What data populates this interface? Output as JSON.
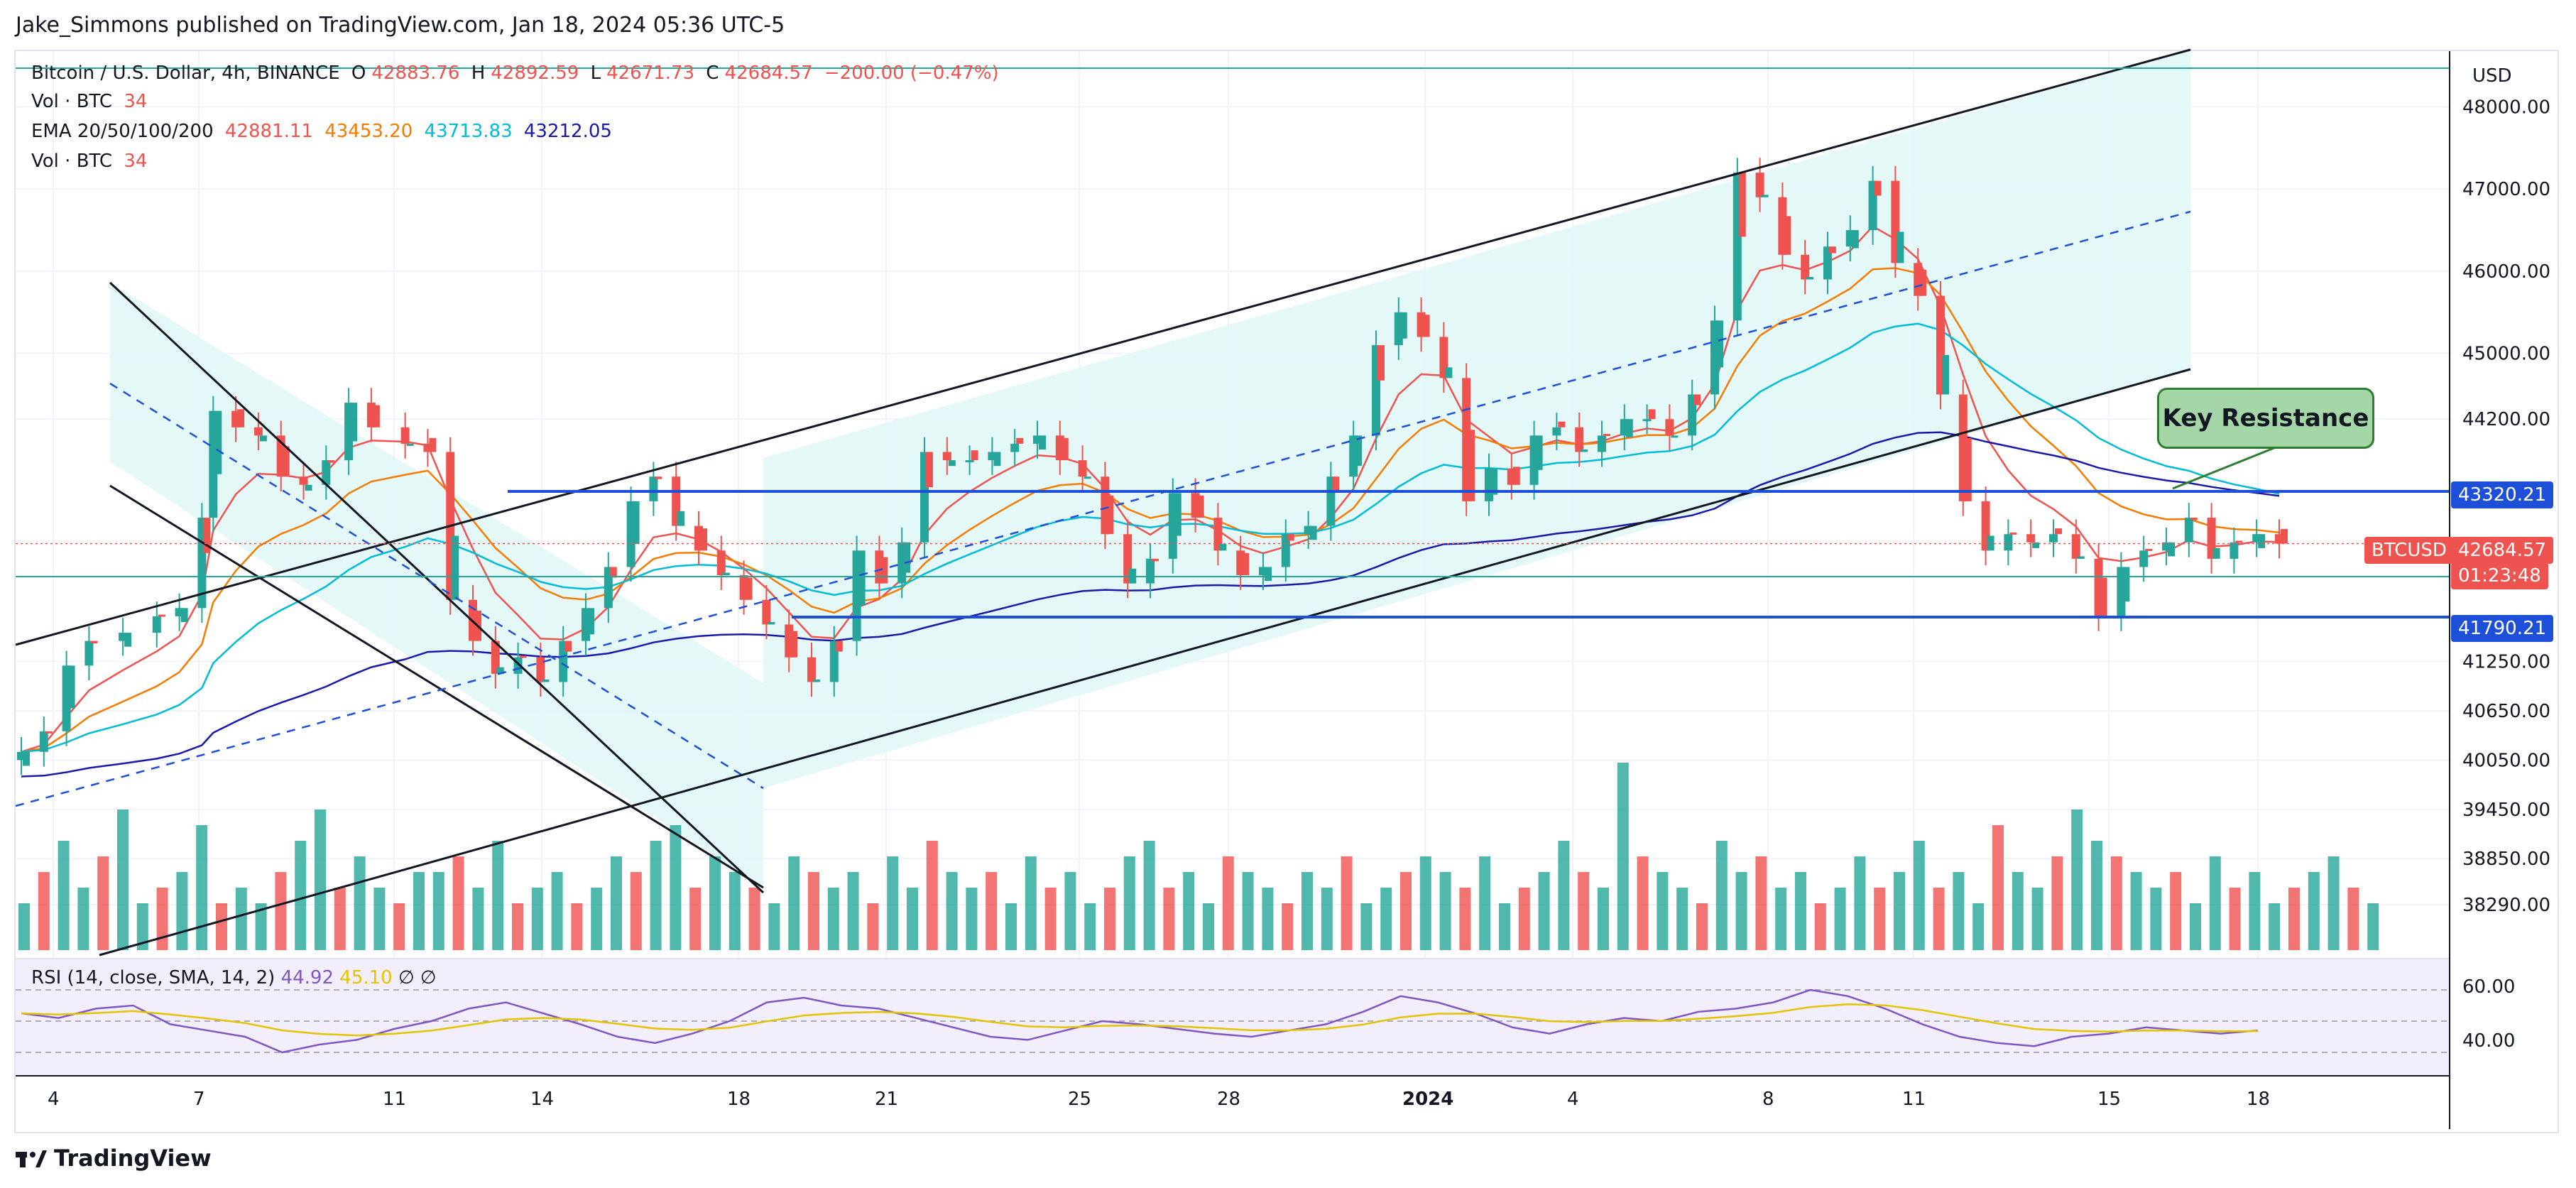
{
  "attribution": "Jake_Simmons published on TradingView.com, Jan 18, 2024 05:36 UTC-5",
  "legend": {
    "symbol": "Bitcoin / U.S. Dollar, 4h, BINANCE",
    "ohlc": {
      "o_label": "O",
      "o": "42883.76",
      "h_label": "H",
      "h": "42892.59",
      "l_label": "L",
      "l": "42671.73",
      "c_label": "C",
      "c": "42684.57",
      "change": "−200.00 (−0.47%)"
    },
    "vol1": {
      "label": "Vol · BTC",
      "value": "34"
    },
    "ema": {
      "label": "EMA 20/50/100/200",
      "v20": "42881.11",
      "v50": "43453.20",
      "v100": "43713.83",
      "v200": "43212.05"
    },
    "vol2": {
      "label": "Vol · BTC",
      "value": "34"
    },
    "rsi": {
      "label": "RSI (14, close, SMA, 14, 2)",
      "value": "44.92",
      "sma": "45.10",
      "icon1": "∅",
      "icon2": "∅"
    }
  },
  "currency": "USD",
  "annotation": "Key Resistance",
  "levels": {
    "resistance": "43320.21",
    "support": "41790.21",
    "last_symbol": "BTCUSD",
    "last_price": "42684.57",
    "countdown": "01:23:48"
  },
  "footer": "TradingView",
  "colors": {
    "up": "#26a69a",
    "down": "#ef5350",
    "ema20": "#ef5350",
    "ema50": "#f57c00",
    "ema100": "#00bcd4",
    "ema200": "#1a1aa6",
    "level": "#1e4fd8",
    "rsi": "#7e57c2",
    "rsi_sma": "#e3c400",
    "channel_fill": "#e0f7f7"
  },
  "chart_data": {
    "type": "candlestick",
    "title": "Bitcoin / U.S. Dollar, 4h, BINANCE",
    "price_ticks": [
      48000,
      47000,
      46000,
      45000,
      44200,
      41250,
      40650,
      40050,
      39450,
      38850,
      38290
    ],
    "time_ticks": [
      "4",
      "7",
      "11",
      "14",
      "18",
      "21",
      "25",
      "28",
      "2024",
      "4",
      "8",
      "11",
      "15",
      "18"
    ],
    "rsi_ticks": [
      60,
      40
    ],
    "horizontal_levels": [
      43320.21,
      41790.21
    ],
    "last_price": 42684.57,
    "price_path": [
      [
        0,
        40150
      ],
      [
        2,
        40400
      ],
      [
        4,
        41200
      ],
      [
        6,
        41500
      ],
      [
        9,
        41600
      ],
      [
        12,
        41800
      ],
      [
        14,
        41900
      ],
      [
        16,
        43000
      ],
      [
        17,
        44300
      ],
      [
        19,
        44100
      ],
      [
        21,
        44000
      ],
      [
        23,
        43500
      ],
      [
        25,
        43400
      ],
      [
        27,
        43700
      ],
      [
        29,
        44400
      ],
      [
        31,
        44100
      ],
      [
        34,
        43900
      ],
      [
        36,
        43800
      ],
      [
        38,
        42000
      ],
      [
        40,
        41500
      ],
      [
        42,
        41100
      ],
      [
        44,
        41300
      ],
      [
        46,
        41000
      ],
      [
        48,
        41500
      ],
      [
        50,
        41900
      ],
      [
        52,
        42400
      ],
      [
        54,
        43200
      ],
      [
        56,
        43500
      ],
      [
        58,
        42900
      ],
      [
        60,
        42600
      ],
      [
        62,
        42300
      ],
      [
        64,
        42000
      ],
      [
        66,
        41700
      ],
      [
        68,
        41300
      ],
      [
        70,
        41000
      ],
      [
        72,
        41500
      ],
      [
        74,
        42600
      ],
      [
        76,
        42200
      ],
      [
        78,
        42700
      ],
      [
        80,
        43800
      ],
      [
        82,
        43700
      ],
      [
        84,
        43700
      ],
      [
        86,
        43800
      ],
      [
        88,
        43900
      ],
      [
        90,
        44000
      ],
      [
        92,
        43700
      ],
      [
        94,
        43500
      ],
      [
        96,
        42800
      ],
      [
        98,
        42200
      ],
      [
        100,
        42500
      ],
      [
        102,
        43300
      ],
      [
        104,
        43000
      ],
      [
        106,
        42600
      ],
      [
        108,
        42300
      ],
      [
        110,
        42400
      ],
      [
        112,
        42800
      ],
      [
        114,
        42900
      ],
      [
        116,
        43500
      ],
      [
        118,
        44000
      ],
      [
        120,
        45100
      ],
      [
        122,
        45500
      ],
      [
        124,
        45200
      ],
      [
        126,
        44700
      ],
      [
        128,
        43200
      ],
      [
        130,
        43600
      ],
      [
        132,
        43400
      ],
      [
        134,
        44000
      ],
      [
        136,
        44100
      ],
      [
        138,
        43800
      ],
      [
        140,
        44000
      ],
      [
        142,
        44200
      ],
      [
        144,
        44200
      ],
      [
        146,
        44000
      ],
      [
        148,
        44500
      ],
      [
        150,
        45400
      ],
      [
        152,
        47200
      ],
      [
        154,
        46900
      ],
      [
        156,
        46200
      ],
      [
        158,
        45900
      ],
      [
        160,
        46300
      ],
      [
        162,
        46500
      ],
      [
        164,
        47100
      ],
      [
        166,
        46100
      ],
      [
        168,
        45700
      ],
      [
        170,
        44500
      ],
      [
        172,
        43200
      ],
      [
        174,
        42600
      ],
      [
        176,
        42800
      ],
      [
        178,
        42700
      ],
      [
        180,
        42800
      ],
      [
        182,
        42500
      ],
      [
        184,
        41800
      ],
      [
        186,
        42400
      ],
      [
        188,
        42600
      ],
      [
        190,
        42700
      ],
      [
        192,
        43000
      ],
      [
        194,
        42500
      ],
      [
        196,
        42700
      ],
      [
        198,
        42800
      ],
      [
        200,
        42684
      ]
    ],
    "volume_bars": [
      3,
      5,
      7,
      4,
      6,
      9,
      3,
      4,
      5,
      8,
      3,
      4,
      3,
      5,
      7,
      9,
      4,
      6,
      4,
      3,
      5,
      5,
      6,
      4,
      7,
      3,
      4,
      5,
      3,
      4,
      6,
      5,
      7,
      8,
      4,
      6,
      5,
      4,
      3,
      6,
      5,
      4,
      5,
      3,
      6,
      4,
      7,
      5,
      4,
      5,
      3,
      6,
      4,
      5,
      3,
      4,
      6,
      7,
      4,
      5,
      3,
      6,
      5,
      4,
      3,
      5,
      4,
      6,
      3,
      4,
      5,
      6,
      5,
      4,
      6,
      3,
      4,
      5,
      7,
      5,
      4,
      12,
      6,
      5,
      4,
      3,
      7,
      5,
      6,
      4,
      5,
      3,
      4,
      6,
      4,
      5,
      7,
      4,
      5,
      3,
      8,
      5,
      4,
      6,
      9,
      7,
      6,
      5,
      4,
      5,
      3,
      6,
      4,
      5,
      3,
      4,
      5,
      6,
      4,
      3
    ],
    "rsi_series": [
      55,
      52,
      58,
      60,
      48,
      44,
      40,
      30,
      35,
      38,
      45,
      50,
      58,
      62,
      55,
      48,
      40,
      36,
      42,
      50,
      62,
      65,
      60,
      58,
      52,
      46,
      40,
      38,
      44,
      50,
      48,
      45,
      42,
      40,
      44,
      48,
      56,
      66,
      62,
      55,
      46,
      42,
      48,
      52,
      50,
      56,
      58,
      62,
      70,
      66,
      58,
      48,
      40,
      36,
      34,
      40,
      42,
      46,
      44,
      42,
      44
    ]
  }
}
